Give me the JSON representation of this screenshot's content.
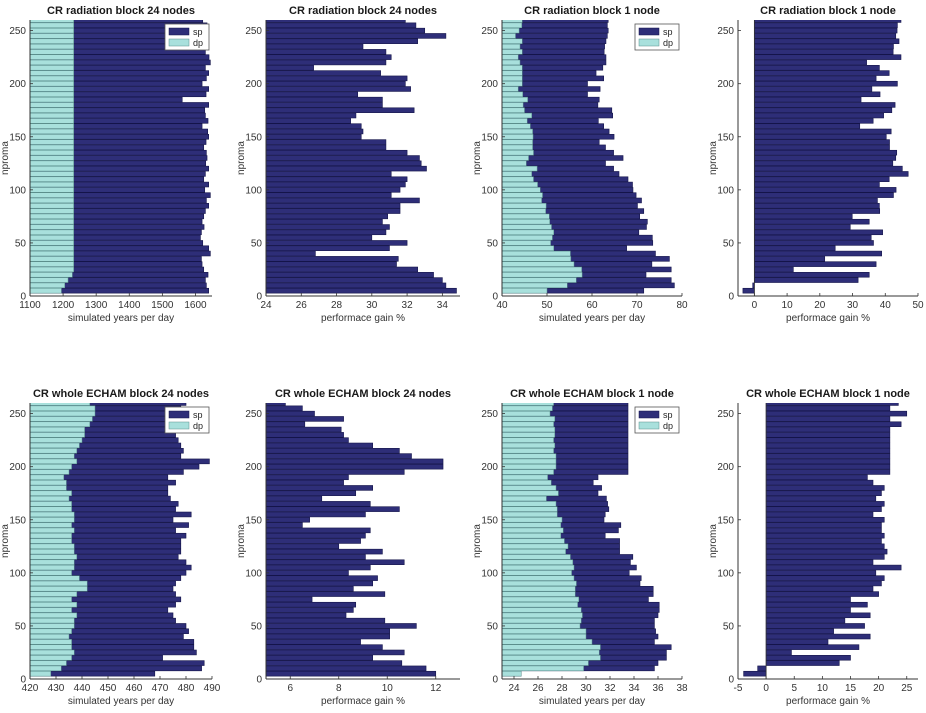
{
  "figure": {
    "legend_labels": {
      "sp": "sp",
      "dp": "dp"
    },
    "colors": {
      "sp": "#2e2e78",
      "dp": "#a8e0dc",
      "axis": "#333333"
    }
  },
  "chart_data": [
    {
      "type": "bar",
      "orientation": "horizontal",
      "stacked_overlay": true,
      "title": "CR radiation block 24 nodes",
      "xlabel": "simulated years per day",
      "ylabel": "nproma",
      "xlim": [
        1100,
        1650
      ],
      "ylim": [
        0,
        260
      ],
      "xticks": [
        1100,
        1200,
        1300,
        1400,
        1500,
        1600
      ],
      "yticks": [
        0,
        50,
        100,
        150,
        200,
        250
      ],
      "legend": "top-right",
      "series": [
        {
          "name": "sp",
          "values": [
            1640,
            1633,
            1630,
            1638,
            1625,
            1620,
            1618,
            1645,
            1640,
            1622,
            1615,
            1618,
            1626,
            1620,
            1625,
            1630,
            1640,
            1633,
            1645,
            1628,
            1640,
            1625,
            1630,
            1640,
            1631,
            1635,
            1633,
            1625,
            1632,
            1640,
            1637,
            1620,
            1638,
            1630,
            1628,
            1640,
            1560,
            1632,
            1640,
            1620,
            1633,
            1640,
            1630,
            1645,
            1641,
            1630,
            1629,
            1629,
            1633,
            1615,
            1635,
            1622
          ]
        },
        {
          "name": "dp",
          "values": [
            1195,
            1205,
            1215,
            1228,
            1232,
            1232,
            1232,
            1232,
            1232,
            1232,
            1232,
            1232,
            1232,
            1232,
            1232,
            1232,
            1232,
            1232,
            1232,
            1232,
            1232,
            1232,
            1232,
            1232,
            1232,
            1232,
            1232,
            1232,
            1232,
            1232,
            1232,
            1232,
            1232,
            1232,
            1232,
            1232,
            1232,
            1232,
            1232,
            1232,
            1232,
            1232,
            1232,
            1232,
            1232,
            1232,
            1232,
            1232,
            1232,
            1232,
            1232,
            1232
          ]
        }
      ]
    },
    {
      "type": "bar",
      "orientation": "horizontal",
      "title": "CR radiation block 24 nodes",
      "xlabel": "performace gain %",
      "ylabel": "nproma",
      "xlim": [
        24,
        35
      ],
      "ylim": [
        0,
        260
      ],
      "xticks": [
        24,
        26,
        28,
        30,
        32,
        34
      ],
      "yticks": [
        0,
        50,
        100,
        150,
        200,
        250
      ],
      "values": [
        34.8,
        34.2,
        34.0,
        33.5,
        32.6,
        31.4,
        31.5,
        26.8,
        31.0,
        32.0,
        30.0,
        30.8,
        31.0,
        30.6,
        30.9,
        31.6,
        31.6,
        32.7,
        31.1,
        31.6,
        31.9,
        32.0,
        31.1,
        33.1,
        32.8,
        32.7,
        32.0,
        30.8,
        30.8,
        29.4,
        29.5,
        29.4,
        28.8,
        29.1,
        32.4,
        30.6,
        30.6,
        29.2,
        32.2,
        31.9,
        32.0,
        30.5,
        26.7,
        30.8,
        31.1,
        30.8,
        29.5,
        32.6,
        34.2,
        33.0,
        32.5,
        31.9
      ]
    },
    {
      "type": "bar",
      "orientation": "horizontal",
      "stacked_overlay": true,
      "title": "CR radiation block 1 node",
      "xlabel": "simulated years per day",
      "ylabel": "nproma",
      "xlim": [
        40,
        80
      ],
      "ylim": [
        0,
        260
      ],
      "xticks": [
        40,
        50,
        60,
        70,
        80
      ],
      "yticks": [
        0,
        50,
        100,
        150,
        200,
        250
      ],
      "legend": "top-right",
      "series": [
        {
          "name": "sp",
          "values": [
            71.5,
            78.3,
            77.6,
            72.0,
            77.6,
            73.3,
            77.2,
            74.1,
            67.7,
            73.5,
            73.4,
            70.4,
            72.1,
            72.3,
            70.6,
            71.5,
            70.1,
            71.0,
            69.8,
            69.1,
            69.0,
            68.0,
            66.0,
            64.8,
            63.0,
            66.9,
            64.8,
            63.0,
            61.6,
            64.9,
            63.8,
            62.6,
            61.4,
            64.6,
            64.4,
            61.3,
            61.6,
            59.0,
            61.8,
            59.0,
            62.6,
            60.9,
            62.4,
            63.1,
            63.1,
            62.7,
            62.8,
            63.1,
            63.4,
            63.6,
            63.4,
            63.6
          ]
        },
        {
          "name": "dp",
          "values": [
            50.0,
            54.5,
            56.5,
            57.8,
            57.7,
            56.0,
            55.3,
            55.2,
            51.5,
            50.8,
            51.2,
            51.5,
            51.0,
            50.6,
            50.5,
            49.7,
            49.8,
            48.8,
            49.0,
            48.5,
            47.9,
            47.0,
            46.6,
            47.8,
            45.4,
            45.9,
            47.0,
            46.8,
            46.8,
            46.9,
            46.8,
            46.3,
            45.6,
            46.6,
            45.0,
            44.7,
            45.7,
            44.6,
            43.6,
            44.5,
            44.5,
            44.5,
            44.5,
            44.0,
            43.6,
            44.5,
            44.0,
            44.5,
            43.0,
            43.8,
            44.4,
            44.5
          ]
        }
      ]
    },
    {
      "type": "bar",
      "orientation": "horizontal",
      "title": "CR radiation block 1 node",
      "xlabel": "performace gain %",
      "ylabel": "nproma",
      "xlim": [
        -5,
        50
      ],
      "ylim": [
        0,
        260
      ],
      "xticks": [
        0,
        10,
        20,
        30,
        40,
        50
      ],
      "yticks": [
        0,
        50,
        100,
        150,
        200,
        250
      ],
      "values": [
        -3.5,
        -0.5,
        31.7,
        35.1,
        11.9,
        37.2,
        21.5,
        38.9,
        24.7,
        36.4,
        35.7,
        39.2,
        29.3,
        35.1,
        29.9,
        38.3,
        38.2,
        37.6,
        42.5,
        43.3,
        38.2,
        41.2,
        47.0,
        45.2,
        42.3,
        43.2,
        43.5,
        41.3,
        41.3,
        40.3,
        41.8,
        32.2,
        36.3,
        39.5,
        42.0,
        43.0,
        32.6,
        38.4,
        35.9,
        43.7,
        37.2,
        41.2,
        38.2,
        34.3,
        44.8,
        42.4,
        42.5,
        44.2,
        43.2,
        43.6,
        43.7,
        44.8
      ]
    },
    {
      "type": "bar",
      "orientation": "horizontal",
      "stacked_overlay": true,
      "title": "CR whole ECHAM block 24 nodes",
      "xlabel": "simulated years per day",
      "ylabel": "nproma",
      "xlim": [
        420,
        490
      ],
      "ylim": [
        0,
        260
      ],
      "xticks": [
        420,
        430,
        440,
        450,
        460,
        470,
        480,
        490
      ],
      "yticks": [
        0,
        50,
        100,
        150,
        200,
        250
      ],
      "legend": "top-right",
      "series": [
        {
          "name": "sp",
          "values": [
            468,
            486,
            487,
            471,
            484,
            483,
            483,
            479,
            481,
            480,
            476,
            475,
            473,
            476,
            478,
            476,
            475,
            476,
            478,
            480,
            482,
            480,
            477,
            478,
            478,
            478,
            480,
            476,
            481,
            475,
            482,
            476,
            477,
            474,
            473,
            473,
            476,
            473,
            479,
            485,
            489,
            478,
            479,
            478,
            477,
            476,
            477,
            480,
            484,
            476,
            478,
            480
          ]
        },
        {
          "name": "dp",
          "values": [
            428,
            432,
            434,
            436,
            437,
            436,
            436,
            435,
            436,
            437,
            437,
            438,
            436,
            438,
            436,
            438,
            442,
            442,
            439,
            436,
            437,
            437,
            438,
            437,
            437,
            436,
            436,
            437,
            436,
            437,
            437,
            436,
            436,
            435,
            436,
            434,
            434,
            433,
            435,
            436,
            438,
            437,
            438,
            439,
            440,
            441,
            441,
            443,
            444,
            445,
            445,
            443
          ]
        }
      ]
    },
    {
      "type": "bar",
      "orientation": "horizontal",
      "title": "CR whole ECHAM block 24 nodes",
      "xlabel": "performace gain %",
      "ylabel": "nproma",
      "xlim": [
        5,
        13
      ],
      "ylim": [
        0,
        260
      ],
      "xticks": [
        6,
        8,
        10,
        12
      ],
      "yticks": [
        0,
        50,
        100,
        150,
        200,
        250
      ],
      "values": [
        12.0,
        11.6,
        10.6,
        9.4,
        10.7,
        9.8,
        8.9,
        10.1,
        10.1,
        11.2,
        9.9,
        8.3,
        8.6,
        8.7,
        6.9,
        9.9,
        8.6,
        9.4,
        9.6,
        8.4,
        9.3,
        10.7,
        9.1,
        9.8,
        8.0,
        8.9,
        9.1,
        9.3,
        6.5,
        6.8,
        9.1,
        10.5,
        9.3,
        7.3,
        8.7,
        9.4,
        8.2,
        8.4,
        10.7,
        12.3,
        12.3,
        11.0,
        10.5,
        9.4,
        8.4,
        8.2,
        8.1,
        6.6,
        8.2,
        7.0,
        6.5,
        5.8
      ]
    },
    {
      "type": "bar",
      "orientation": "horizontal",
      "stacked_overlay": true,
      "title": "CR whole ECHAM block 1 node",
      "xlabel": "simulated years per day",
      "ylabel": "nproma",
      "xlim": [
        23,
        38
      ],
      "ylim": [
        0,
        260
      ],
      "xticks": [
        24,
        26,
        28,
        30,
        32,
        34,
        36,
        38
      ],
      "yticks": [
        0,
        50,
        100,
        150,
        200,
        250
      ],
      "legend": "top-right",
      "series": [
        {
          "name": "sp",
          "values": [
            24.6,
            35.7,
            36.0,
            36.7,
            36.7,
            37.1,
            35.7,
            36.0,
            35.8,
            35.7,
            35.7,
            36.0,
            36.1,
            36.1,
            35.2,
            35.6,
            35.6,
            34.5,
            34.6,
            33.6,
            34.2,
            33.7,
            33.9,
            32.8,
            32.8,
            32.8,
            31.6,
            32.7,
            32.9,
            31.5,
            31.6,
            31.9,
            31.8,
            31.7,
            31.0,
            31.3,
            30.6,
            31.0,
            33.5,
            33.5,
            33.5,
            33.5,
            33.5,
            33.5,
            33.5,
            33.5,
            33.5,
            33.5,
            33.5,
            33.5,
            33.5,
            33.5
          ]
        },
        {
          "name": "dp",
          "values": [
            24.6,
            29.8,
            30.2,
            31.2,
            31.1,
            31.2,
            30.5,
            30.0,
            30.0,
            29.5,
            29.6,
            29.7,
            29.6,
            29.3,
            29.4,
            29.1,
            29.1,
            29.2,
            29.0,
            28.8,
            29.0,
            28.9,
            28.7,
            28.3,
            28.5,
            28.2,
            27.9,
            28.1,
            27.9,
            28.0,
            27.6,
            27.6,
            27.5,
            26.7,
            27.7,
            27.5,
            27.1,
            26.8,
            27.3,
            27.5,
            27.5,
            27.5,
            27.3,
            27.4,
            27.3,
            27.4,
            27.4,
            27.3,
            27.4,
            27.0,
            27.2,
            27.3
          ]
        }
      ]
    },
    {
      "type": "bar",
      "orientation": "horizontal",
      "title": "CR whole ECHAM block 1 node",
      "xlabel": "performace gain %",
      "ylabel": "nproma",
      "xlim": [
        -5,
        27
      ],
      "ylim": [
        0,
        260
      ],
      "xticks": [
        -5,
        0,
        5,
        10,
        15,
        20,
        25
      ],
      "yticks": [
        0,
        50,
        100,
        150,
        200,
        250
      ],
      "values": [
        -4.0,
        -1.5,
        13.0,
        15.0,
        4.5,
        16.5,
        11.0,
        18.5,
        12.0,
        17.5,
        14.0,
        18.5,
        15.0,
        18.0,
        15.0,
        20.0,
        19.0,
        20.5,
        21.0,
        19.5,
        24.0,
        19.0,
        21.0,
        21.5,
        21.0,
        20.5,
        21.0,
        20.5,
        20.5,
        21.0,
        19.0,
        20.5,
        21.0,
        19.5,
        20.5,
        21.0,
        19.0,
        18.0,
        22.0,
        22.0,
        22.0,
        22.0,
        22.0,
        22.0,
        22.0,
        22.0,
        22.0,
        24.0,
        22.0,
        25.0,
        22.0,
        23.5
      ]
    }
  ]
}
